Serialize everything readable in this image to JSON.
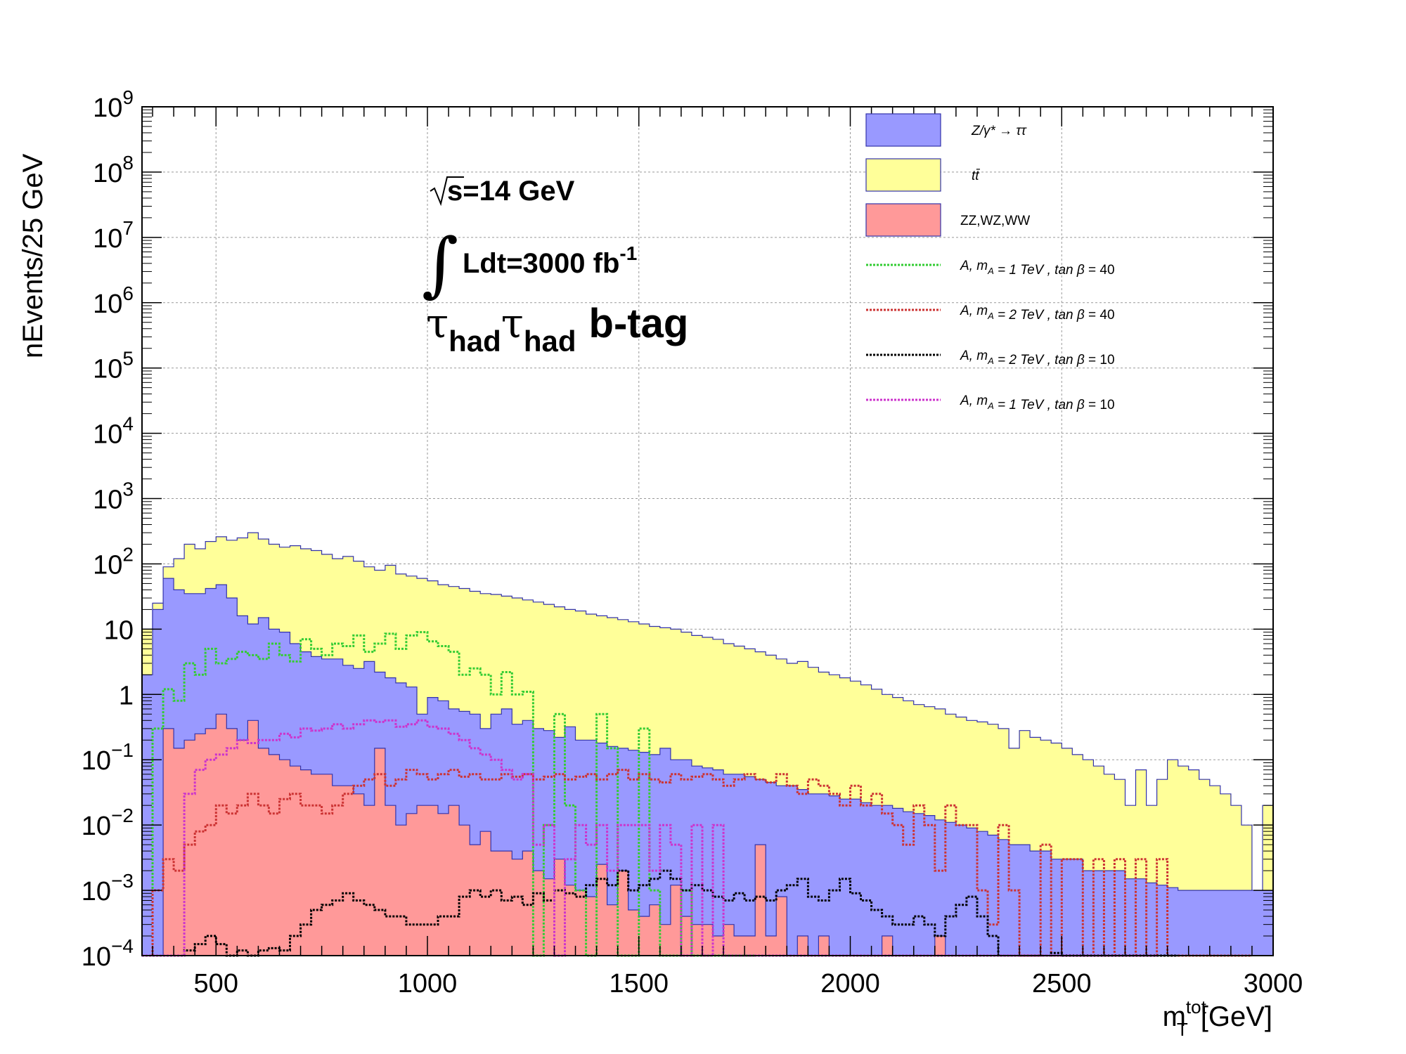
{
  "chart_data": {
    "type": "histogram",
    "x_range": [
      325,
      3000
    ],
    "y_range": [
      0.0001,
      1000000000
    ],
    "y_log": true,
    "grid": true,
    "legend_placement": "top-right",
    "xlabel_main": "m",
    "xlabel_sup": "tot",
    "xlabel_sub": "T",
    "xlabel_units": "[GeV]",
    "ylabel": "nEvents/25 GeV",
    "x_ticks": [
      500,
      1000,
      1500,
      2000,
      2500,
      3000
    ],
    "y_ticks": [
      {
        "value": 1000000000,
        "base": "10",
        "exp": "9"
      },
      {
        "value": 100000000,
        "base": "10",
        "exp": "8"
      },
      {
        "value": 10000000,
        "base": "10",
        "exp": "7"
      },
      {
        "value": 1000000,
        "base": "10",
        "exp": "6"
      },
      {
        "value": 100000,
        "base": "10",
        "exp": "5"
      },
      {
        "value": 10000,
        "base": "10",
        "exp": "4"
      },
      {
        "value": 1000,
        "base": "10",
        "exp": "3"
      },
      {
        "value": 100,
        "base": "10",
        "exp": "2"
      },
      {
        "value": 10,
        "base": "10",
        "exp": ""
      },
      {
        "value": 1,
        "base": "1",
        "exp": ""
      },
      {
        "value": 0.1,
        "base": "10",
        "exp": "−1"
      },
      {
        "value": 0.01,
        "base": "10",
        "exp": "−2"
      },
      {
        "value": 0.001,
        "base": "10",
        "exp": "−3"
      },
      {
        "value": 0.0001,
        "base": "10",
        "exp": "−4"
      }
    ],
    "annotations": {
      "energy": "s=14 GeV",
      "lumi_main": "Ldt=3000 fb",
      "lumi_sup": "-1",
      "channel_tau": "τ",
      "channel_sub": "had",
      "channel_tag": "b-tag"
    },
    "series": [
      {
        "name": "Z/γ* → ττ",
        "kind": "fill",
        "color": "#9999ff",
        "x_start": 325,
        "bin_width": 25,
        "values": [
          2,
          20,
          60,
          40,
          35,
          35,
          42,
          48,
          30,
          16,
          12,
          15,
          10,
          9,
          6,
          4.5,
          3.8,
          3.5,
          3.5,
          2.8,
          2.5,
          3.2,
          2.2,
          1.8,
          1.5,
          1.3,
          0.5,
          0.9,
          0.8,
          0.6,
          0.55,
          0.5,
          0.3,
          0.5,
          0.6,
          0.35,
          0.4,
          0.3,
          0.28,
          0.22,
          0.32,
          0.2,
          0.2,
          0.18,
          0.16,
          0.15,
          0.14,
          0.13,
          0.12,
          0.15,
          0.1,
          0.1,
          0.08,
          0.075,
          0.07,
          0.06,
          0.06,
          0.055,
          0.05,
          0.045,
          0.04,
          0.04,
          0.035,
          0.03,
          0.03,
          0.028,
          0.025,
          0.025,
          0.022,
          0.02,
          0.02,
          0.018,
          0.016,
          0.015,
          0.014,
          0.012,
          0.011,
          0.01,
          0.009,
          0.008,
          0.007,
          0.006,
          0.005,
          0.005,
          0.004,
          0.004,
          0.003,
          0.003,
          0.003,
          0.002,
          0.002,
          0.002,
          0.002,
          0.0015,
          0.0015,
          0.0013,
          0.0012,
          0.0011,
          0.001,
          0.001,
          0.001,
          0.001,
          0.001,
          0.001,
          0.001,
          0.001,
          0.001
        ]
      },
      {
        "name": "tt̄",
        "kind": "fill",
        "color": "#ffff99",
        "x_start": 325,
        "bin_width": 25,
        "values": [
          10,
          25,
          90,
          120,
          200,
          170,
          220,
          260,
          230,
          250,
          300,
          240,
          200,
          180,
          190,
          170,
          160,
          140,
          120,
          130,
          110,
          90,
          80,
          95,
          70,
          65,
          60,
          55,
          48,
          45,
          42,
          38,
          35,
          34,
          32,
          30,
          28,
          26,
          24,
          22,
          20,
          19,
          17,
          16,
          15,
          14,
          13,
          12,
          11,
          10.5,
          10,
          9,
          8,
          7.5,
          7,
          6,
          5.5,
          5,
          4.5,
          4,
          3.5,
          3,
          3.2,
          2.6,
          2.2,
          2,
          1.8,
          1.6,
          1.4,
          1.2,
          1,
          0.9,
          0.8,
          0.7,
          0.65,
          0.6,
          0.5,
          0.45,
          0.4,
          0.38,
          0.35,
          0.3,
          0.15,
          0.28,
          0.22,
          0.2,
          0.18,
          0.15,
          0.12,
          0.1,
          0.08,
          0.06,
          0.05,
          0.02,
          0.07,
          0.02,
          0.05,
          0.1,
          0.08,
          0.07,
          0.05,
          0.04,
          0.03,
          0.02,
          0.01,
          0.0001,
          0.02,
          0.01
        ]
      },
      {
        "name": "ZZ,WZ,WW",
        "kind": "fill",
        "color": "#ff9999",
        "x_start": 325,
        "bin_width": 25,
        "values": [
          0.0001,
          0.0001,
          0.3,
          0.15,
          0.2,
          0.25,
          0.3,
          0.5,
          0.3,
          0.2,
          0.4,
          0.15,
          0.12,
          0.1,
          0.08,
          0.07,
          0.06,
          0.06,
          0.04,
          0.04,
          0.03,
          0.02,
          0.15,
          0.02,
          0.01,
          0.015,
          0.02,
          0.02,
          0.015,
          0.02,
          0.01,
          0.005,
          0.008,
          0.004,
          0.004,
          0.003,
          0.004,
          0.002,
          0.0015,
          0.003,
          0.0012,
          0.001,
          0.0008,
          0.0025,
          0.0006,
          0.002,
          0.0005,
          0.0004,
          0.0006,
          0.0003,
          0.0012,
          0.0004,
          0.0003,
          0.0003,
          0.0002,
          0.0003,
          0.0002,
          0.0002,
          0.005,
          0.0002,
          0.0008,
          0.0001,
          0.0002,
          0.0001,
          0.0002,
          0.0001,
          0.0001,
          0.0001,
          0.0001,
          0.0001,
          0.0002,
          0.0001,
          0.0001,
          0.0001,
          0.0001,
          0.0002,
          0.0001,
          0.0001,
          0.0001,
          0.0001
        ]
      },
      {
        "name": "A, m_A = 1 TeV, tan β = 40",
        "kind": "line",
        "color": "#33cc33",
        "x_start": 325,
        "bin_width": 25,
        "values": [
          0.0001,
          0.3,
          1.2,
          0.8,
          3,
          2,
          5,
          3,
          3.5,
          4.5,
          4,
          3.5,
          6,
          4,
          3.2,
          7,
          5,
          4,
          6,
          5.5,
          8,
          4.5,
          6,
          8.5,
          5,
          8,
          9,
          6.5,
          5.5,
          4.5,
          2,
          2.5,
          2,
          1,
          2.2,
          1,
          1.1,
          0.0001,
          0.01,
          0.5,
          0.02,
          0.001,
          0.0001,
          0.5,
          0.15,
          0.0001,
          0.0001,
          0.3,
          0.001,
          0.0001,
          0.0001,
          0.001,
          0.0001,
          0.0001,
          0.0001,
          0.0001,
          0.0001,
          0.0001
        ]
      },
      {
        "name": "A, m_A = 2 TeV, tan β = 40",
        "kind": "line",
        "color": "#cc3333",
        "x_start": 325,
        "bin_width": 25,
        "values": [
          0.0001,
          0.001,
          0.003,
          0.002,
          0.005,
          0.008,
          0.01,
          0.02,
          0.015,
          0.02,
          0.03,
          0.02,
          0.015,
          0.025,
          0.03,
          0.02,
          0.02,
          0.015,
          0.02,
          0.03,
          0.04,
          0.05,
          0.06,
          0.04,
          0.05,
          0.07,
          0.06,
          0.05,
          0.06,
          0.07,
          0.055,
          0.06,
          0.05,
          0.05,
          0.06,
          0.055,
          0.06,
          0.05,
          0.055,
          0.06,
          0.05,
          0.055,
          0.06,
          0.05,
          0.06,
          0.07,
          0.05,
          0.06,
          0.05,
          0.045,
          0.06,
          0.05,
          0.055,
          0.06,
          0.05,
          0.04,
          0.05,
          0.06,
          0.05,
          0.045,
          0.06,
          0.04,
          0.03,
          0.05,
          0.04,
          0.03,
          0.02,
          0.04,
          0.02,
          0.03,
          0.015,
          0.01,
          0.005,
          0.02,
          0.01,
          0.002,
          0.02,
          0.01,
          0.01,
          0.001,
          0.0003,
          0.01,
          0.001,
          0.0001,
          0.0001,
          0.005,
          0.0001,
          0.003,
          0.003,
          0.0001,
          0.003,
          0.0001,
          0.003,
          0.0001,
          0.003,
          0.0001,
          0.003,
          0.0001,
          0.0001,
          0.0001,
          0.0001,
          0.0001,
          0.0001,
          0.0001,
          0.0001
        ]
      },
      {
        "name": "A, m_A = 2 TeV, tan β = 10",
        "kind": "line",
        "color": "#000000",
        "x_start": 325,
        "bin_width": 25,
        "values": [
          0.0001,
          0.0001,
          0.0001,
          0.0001,
          0.00012,
          0.00015,
          0.0002,
          0.00015,
          0.0001,
          0.00012,
          0.0001,
          0.00012,
          0.00013,
          0.00012,
          0.0002,
          0.0003,
          0.0005,
          0.0006,
          0.0007,
          0.0009,
          0.0007,
          0.0006,
          0.0005,
          0.0004,
          0.0004,
          0.0003,
          0.0003,
          0.0003,
          0.0004,
          0.0004,
          0.0008,
          0.001,
          0.0008,
          0.001,
          0.0007,
          0.0008,
          0.0006,
          0.0009,
          0.0007,
          0.001,
          0.0009,
          0.0008,
          0.0012,
          0.0015,
          0.0012,
          0.002,
          0.001,
          0.0012,
          0.0015,
          0.002,
          0.0015,
          0.001,
          0.0012,
          0.001,
          0.0008,
          0.0007,
          0.0009,
          0.0007,
          0.0008,
          0.0007,
          0.001,
          0.0012,
          0.0015,
          0.0008,
          0.0007,
          0.001,
          0.0015,
          0.0009,
          0.0007,
          0.0005,
          0.0004,
          0.0003,
          0.0003,
          0.0004,
          0.0003,
          0.0002,
          0.0004,
          0.0006,
          0.0008,
          0.0004,
          0.0002,
          0.0001,
          0.0001,
          0.0001,
          0.0001,
          0.0001,
          0.00011,
          0.0001,
          0.0001,
          0.0001,
          0.0001,
          0.0001,
          0.0001,
          0.0001,
          0.0001,
          0.0001,
          0.0001,
          0.0001
        ]
      },
      {
        "name": "A, m_A = 1 TeV, tan β = 10",
        "kind": "line",
        "color": "#cc33cc",
        "x_start": 325,
        "bin_width": 25,
        "values": [
          0.0001,
          0.0001,
          0.0001,
          0.0001,
          0.03,
          0.07,
          0.1,
          0.12,
          0.15,
          0.2,
          0.18,
          0.2,
          0.2,
          0.25,
          0.22,
          0.3,
          0.28,
          0.3,
          0.35,
          0.3,
          0.35,
          0.4,
          0.38,
          0.4,
          0.32,
          0.35,
          0.4,
          0.32,
          0.3,
          0.25,
          0.2,
          0.15,
          0.12,
          0.1,
          0.07,
          0.05,
          0.06,
          0.005,
          0.01,
          0.0001,
          0.003,
          0.01,
          0.005,
          0.01,
          0.002,
          0.01,
          0.01,
          0.01,
          0.002,
          0.01,
          0.005,
          0.0001,
          0.01,
          0.0001,
          0.01,
          0.0001,
          0.0001,
          0.0001,
          0.0001,
          0.0001,
          0.0001,
          0.0001,
          0.0001,
          0.0001,
          0.0001,
          0.0001,
          0.0001,
          0.0001,
          0.0001,
          0.0001,
          0.0001,
          0.0001,
          0.0001,
          0.0001,
          0.0001,
          0.0001,
          0.0001,
          0.0001,
          0.0001,
          0.0001,
          0.0001,
          0.0001,
          0.0001,
          0.0001,
          0.0001,
          0.0001,
          0.0001,
          0.0001,
          0.0001,
          0.0001,
          0.0001,
          0.0001,
          0.0001,
          0.0001,
          0.0001,
          0.0001
        ]
      }
    ],
    "legend": [
      {
        "parts": [
          {
            "t": "Z/γ* → ττ",
            "it": true
          }
        ],
        "series": 0
      },
      {
        "parts": [
          {
            "t": "tt̄",
            "it": true
          }
        ],
        "series": 1
      },
      {
        "parts": [
          {
            "t": "ZZ,WZ,WW",
            "it": false
          }
        ],
        "series": 2
      },
      {
        "parts": [
          {
            "t": "A,   m",
            "it": true
          },
          {
            "t": "A",
            "it": true,
            "sub": true
          },
          {
            "t": " = 1   TeV   ,   tan ",
            "it": true
          },
          {
            "t": "β",
            "it": true
          },
          {
            "t": " = 40",
            "it": false
          }
        ],
        "series": 3
      },
      {
        "parts": [
          {
            "t": "A,   m",
            "it": true
          },
          {
            "t": "A",
            "it": true,
            "sub": true
          },
          {
            "t": " = 2   TeV   ,   tan ",
            "it": true
          },
          {
            "t": "β",
            "it": true
          },
          {
            "t": " = 40",
            "it": false
          }
        ],
        "series": 4
      },
      {
        "parts": [
          {
            "t": "A,   m",
            "it": true
          },
          {
            "t": "A",
            "it": true,
            "sub": true
          },
          {
            "t": " = 2   TeV   ,   tan ",
            "it": true
          },
          {
            "t": "β",
            "it": true
          },
          {
            "t": " = 10",
            "it": false
          }
        ],
        "series": 5
      },
      {
        "parts": [
          {
            "t": "A,   m",
            "it": true
          },
          {
            "t": "A",
            "it": true,
            "sub": true
          },
          {
            "t": " = 1   TeV   ,   tan ",
            "it": true
          },
          {
            "t": "β",
            "it": true
          },
          {
            "t": " = 10",
            "it": false
          }
        ],
        "series": 6
      }
    ]
  }
}
